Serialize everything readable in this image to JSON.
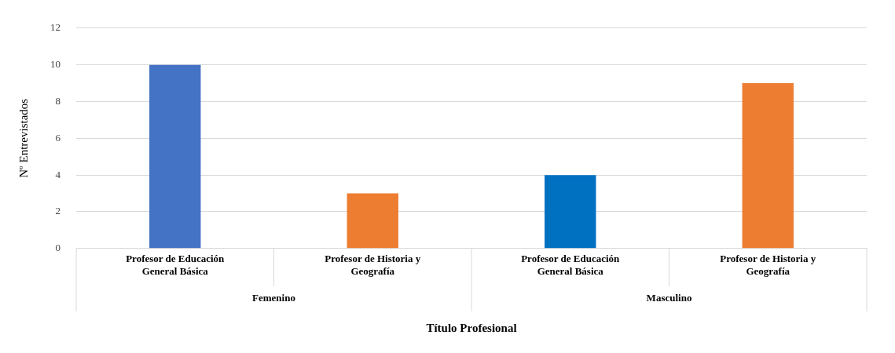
{
  "chart_data": {
    "type": "bar",
    "xlabel": "Título Profesional",
    "ylabel": "Nº Entrevistados",
    "categories": [
      "Profesor de Educación General Básica",
      "Profesor de Historia y Geografía",
      "Profesor de Educación General Básica",
      "Profesor de Historia y Geografía"
    ],
    "values": [
      10,
      3,
      4,
      9
    ],
    "colors": [
      "#4472c4",
      "#ed7d31",
      "#0070c0",
      "#ed7d31"
    ],
    "ylim": [
      0,
      12
    ],
    "yticks": [
      0,
      2,
      4,
      6,
      8,
      10,
      12
    ],
    "grid": "y",
    "legend": false,
    "annotations": [
      "Femenino",
      "Masculino"
    ]
  }
}
